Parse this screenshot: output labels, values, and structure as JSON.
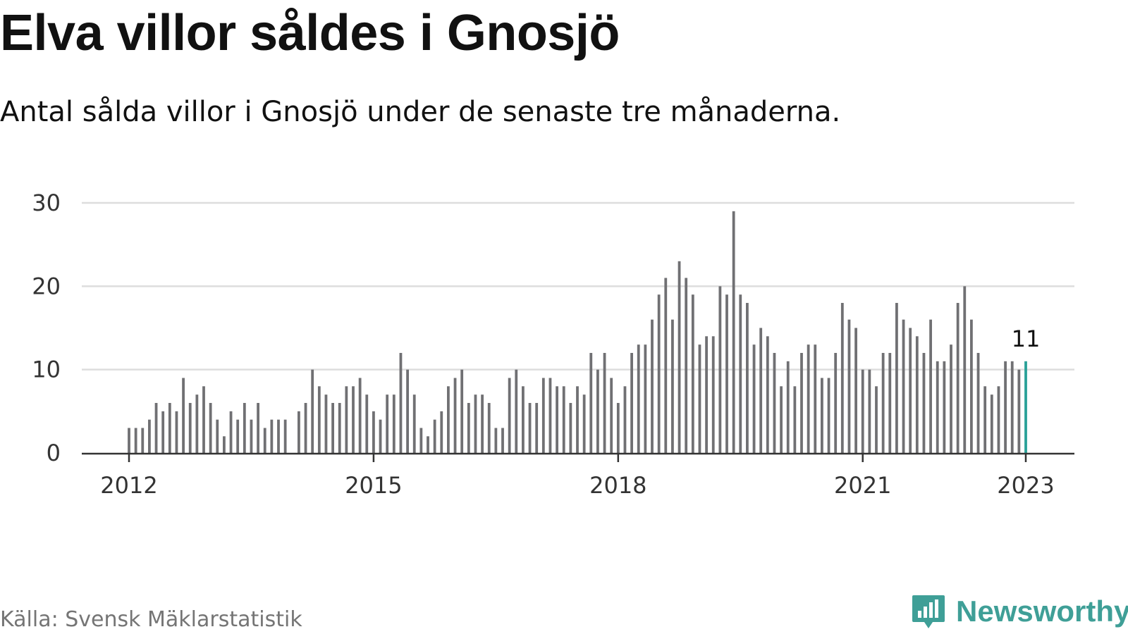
{
  "header": {
    "title": "Elva villor såldes i Gnosjö",
    "subtitle": "Antal sålda villor i Gnosjö under de senaste tre månaderna."
  },
  "footer": {
    "source": "Källa: Svensk Mäklarstatistik",
    "brand": "Newsworthy",
    "brand_icon": "newsworthy-logo-icon"
  },
  "colors": {
    "bar": "#707073",
    "highlight": "#2aa198",
    "grid": "#dddddd",
    "axis": "#333333",
    "brand": "#3f9f97"
  },
  "chart_data": {
    "type": "bar",
    "start": "2012-01",
    "xticks": [
      "2012",
      "2015",
      "2018",
      "2021",
      "2023"
    ],
    "yticks": [
      0,
      10,
      20,
      30
    ],
    "ylim": [
      0,
      30
    ],
    "grid": true,
    "highlight_label": "11",
    "series": [
      {
        "values": [
          3,
          3,
          3,
          4,
          6,
          5,
          6,
          5,
          9,
          6,
          7,
          8,
          6,
          4,
          2,
          5,
          4,
          6,
          4,
          6,
          3,
          4,
          4,
          4,
          null,
          5,
          6,
          10,
          8,
          7,
          6,
          6,
          8,
          8,
          9,
          7,
          5,
          4,
          7,
          7,
          12,
          10,
          7,
          3,
          2,
          4,
          5,
          8,
          9,
          10,
          6,
          7,
          7,
          6,
          3,
          3,
          9,
          10,
          8,
          6,
          6,
          9,
          9,
          8,
          8,
          6,
          8,
          7,
          12,
          10,
          12,
          9,
          6,
          8,
          12,
          13,
          13,
          16,
          19,
          21,
          16,
          23,
          21,
          19,
          13,
          14,
          14,
          20,
          19,
          29,
          19,
          18,
          13,
          15,
          14,
          12,
          8,
          11,
          8,
          12,
          13,
          13,
          9,
          9,
          12,
          18,
          16,
          15,
          10,
          10,
          8,
          12,
          12,
          18,
          16,
          15,
          14,
          12,
          16,
          11,
          11,
          13,
          18,
          20,
          16,
          12,
          8,
          7,
          8,
          11,
          11,
          10,
          11
        ]
      }
    ]
  }
}
